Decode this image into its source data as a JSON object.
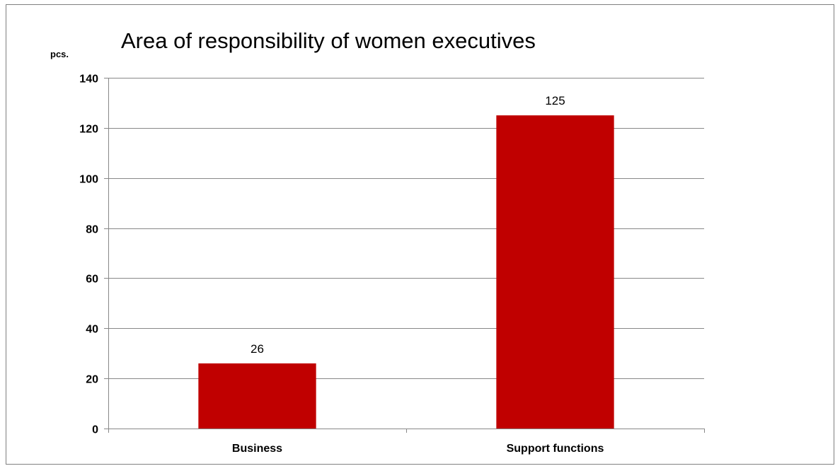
{
  "chart_data": {
    "type": "bar",
    "title": "Area of responsibility of women executives",
    "ylabel": "pcs.",
    "xlabel": "",
    "categories": [
      "Business",
      "Support functions"
    ],
    "series": [
      {
        "values": [
          26,
          125
        ],
        "color": "#c00000"
      }
    ],
    "data_labels": [
      "26",
      "125"
    ],
    "ylim": [
      0,
      140
    ],
    "yticks": [
      0,
      20,
      40,
      60,
      80,
      100,
      120,
      140
    ],
    "ytick_labels": [
      "0",
      "20",
      "40",
      "60",
      "80",
      "100",
      "120",
      "140"
    ],
    "grid": true,
    "legend": "none"
  }
}
